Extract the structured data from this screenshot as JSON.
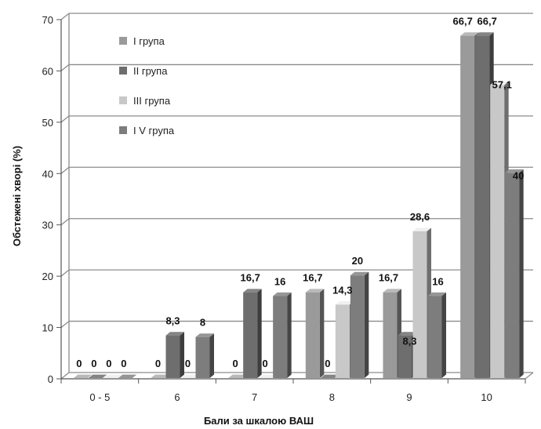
{
  "chart_data": {
    "type": "bar",
    "style": "3d-clustered",
    "categories": [
      "0 - 5",
      "6",
      "7",
      "8",
      "9",
      "10"
    ],
    "series": [
      {
        "name": "I група",
        "color": "#9a9a9a",
        "values": [
          0,
          0,
          0,
          16.7,
          16.7,
          66.7
        ],
        "labels": [
          "0",
          "0",
          "0",
          "16,7",
          "16,7",
          "66,7"
        ]
      },
      {
        "name": "II група",
        "color": "#6e6e6e",
        "values": [
          0,
          8.3,
          16.7,
          0,
          8.3,
          66.7
        ],
        "labels": [
          "0",
          "8,3",
          "16,7",
          "0",
          "8,3",
          "66,7"
        ]
      },
      {
        "name": "III група",
        "color": "#c8c8c8",
        "values": [
          0,
          0,
          0,
          14.3,
          28.6,
          57.1
        ],
        "labels": [
          "0",
          "0",
          "0",
          "14,3",
          "28,6",
          "57,1"
        ]
      },
      {
        "name": "I V  група",
        "color": "#7d7d7d",
        "values": [
          0,
          8,
          16,
          20,
          16,
          40
        ],
        "labels": [
          "0",
          "8",
          "16",
          "20",
          "16",
          "40"
        ]
      }
    ],
    "xlabel": "Бали за шкалою ВАШ",
    "ylabel": "Обстежені хворі (%)",
    "ylim": [
      0,
      70
    ],
    "yticks": [
      "0",
      "10",
      "20",
      "30",
      "40",
      "50",
      "60",
      "70"
    ],
    "grid": true,
    "legend": "top-left"
  }
}
